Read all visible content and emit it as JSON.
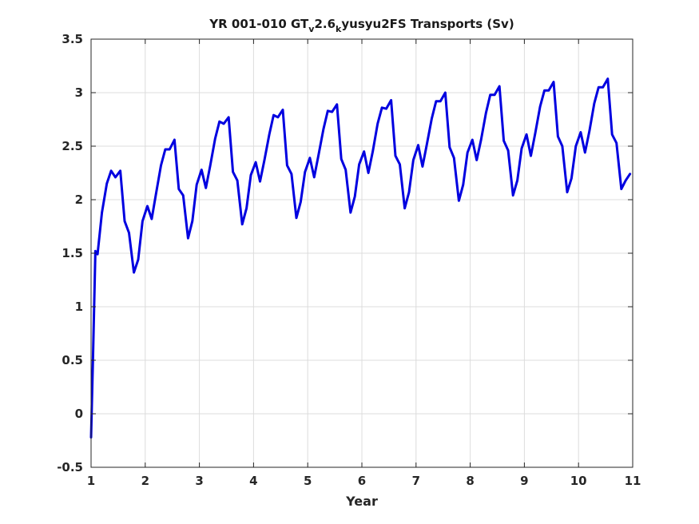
{
  "chart_data": {
    "type": "line",
    "title": {
      "parts": [
        {
          "text": "YR 001-010 GT",
          "sub": false
        },
        {
          "text": "v",
          "sub": true
        },
        {
          "text": "2.6",
          "sub": false
        },
        {
          "text": "k",
          "sub": true
        },
        {
          "text": "yusyu2FS Transports (Sv)",
          "sub": false
        }
      ]
    },
    "xlabel": "Year",
    "ylabel": "",
    "xlim": [
      1,
      11
    ],
    "ylim": [
      -0.5,
      3.5
    ],
    "xticks": [
      1,
      2,
      3,
      4,
      5,
      6,
      7,
      8,
      9,
      10,
      11
    ],
    "yticks": [
      -0.5,
      0,
      0.5,
      1,
      1.5,
      2,
      2.5,
      3,
      3.5
    ],
    "xtick_labels": [
      "1",
      "2",
      "3",
      "4",
      "5",
      "6",
      "7",
      "8",
      "9",
      "10",
      "11"
    ],
    "ytick_labels": [
      "-0.5",
      "0",
      "0.5",
      "1",
      "1.5",
      "2",
      "2.5",
      "3",
      "3.5"
    ],
    "grid": true,
    "series": [
      {
        "color": "#0000e0",
        "x": [
          1.0,
          1.04,
          1.08,
          1.12,
          1.2,
          1.29,
          1.37,
          1.45,
          1.54,
          1.62,
          1.7,
          1.79,
          1.87,
          1.95,
          2.04,
          2.12,
          2.2,
          2.29,
          2.37,
          2.45,
          2.54,
          2.62,
          2.7,
          2.79,
          2.87,
          2.95,
          3.04,
          3.12,
          3.2,
          3.29,
          3.37,
          3.45,
          3.54,
          3.62,
          3.7,
          3.79,
          3.87,
          3.95,
          4.04,
          4.12,
          4.2,
          4.29,
          4.37,
          4.45,
          4.54,
          4.62,
          4.7,
          4.79,
          4.87,
          4.95,
          5.04,
          5.12,
          5.2,
          5.29,
          5.37,
          5.45,
          5.54,
          5.62,
          5.7,
          5.79,
          5.87,
          5.95,
          6.04,
          6.12,
          6.2,
          6.29,
          6.37,
          6.45,
          6.54,
          6.62,
          6.7,
          6.79,
          6.87,
          6.95,
          7.04,
          7.12,
          7.2,
          7.29,
          7.37,
          7.45,
          7.54,
          7.62,
          7.7,
          7.79,
          7.87,
          7.95,
          8.04,
          8.12,
          8.2,
          8.29,
          8.37,
          8.45,
          8.54,
          8.62,
          8.7,
          8.79,
          8.87,
          8.95,
          9.04,
          9.12,
          9.2,
          9.29,
          9.37,
          9.45,
          9.54,
          9.62,
          9.7,
          9.79,
          9.87,
          9.95,
          10.04,
          10.12,
          10.2,
          10.29,
          10.37,
          10.45,
          10.54,
          10.62,
          10.7,
          10.79,
          10.87,
          10.95
        ],
        "y": [
          -0.22,
          0.62,
          1.52,
          1.49,
          1.88,
          2.15,
          2.27,
          2.21,
          2.27,
          1.8,
          1.69,
          1.32,
          1.44,
          1.8,
          1.94,
          1.82,
          2.06,
          2.32,
          2.47,
          2.47,
          2.56,
          2.1,
          2.04,
          1.64,
          1.8,
          2.14,
          2.28,
          2.11,
          2.32,
          2.57,
          2.73,
          2.71,
          2.77,
          2.26,
          2.18,
          1.77,
          1.92,
          2.23,
          2.35,
          2.17,
          2.37,
          2.61,
          2.79,
          2.77,
          2.84,
          2.32,
          2.24,
          1.83,
          1.98,
          2.26,
          2.39,
          2.21,
          2.42,
          2.66,
          2.83,
          2.82,
          2.89,
          2.38,
          2.28,
          1.88,
          2.03,
          2.33,
          2.45,
          2.25,
          2.45,
          2.71,
          2.86,
          2.85,
          2.93,
          2.41,
          2.33,
          1.92,
          2.07,
          2.37,
          2.51,
          2.31,
          2.52,
          2.76,
          2.92,
          2.92,
          3.0,
          2.49,
          2.39,
          1.99,
          2.14,
          2.44,
          2.56,
          2.37,
          2.56,
          2.81,
          2.98,
          2.98,
          3.06,
          2.55,
          2.46,
          2.04,
          2.18,
          2.48,
          2.61,
          2.41,
          2.62,
          2.87,
          3.02,
          3.02,
          3.1,
          2.59,
          2.5,
          2.07,
          2.2,
          2.5,
          2.63,
          2.44,
          2.64,
          2.9,
          3.05,
          3.05,
          3.13,
          2.61,
          2.53,
          2.1,
          2.18,
          2.24
        ]
      }
    ]
  }
}
